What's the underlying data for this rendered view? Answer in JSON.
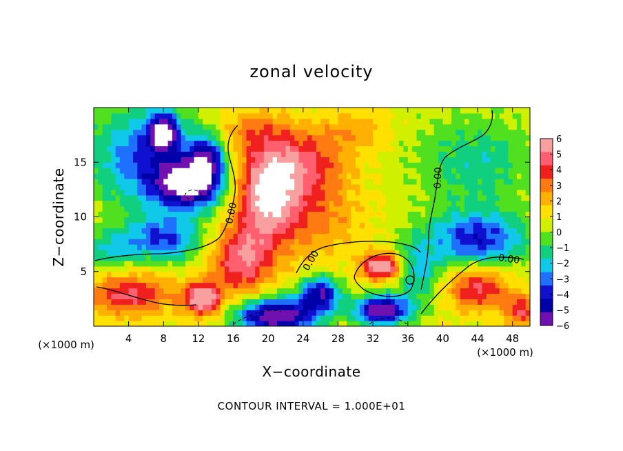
{
  "chart_data": {
    "type": "heatmap",
    "title": "zonal velocity",
    "xlabel": "X−coordinate",
    "ylabel": "Z−coordinate",
    "x_unit": "(×1000 m)",
    "z_unit": "(×1000 m)",
    "xlim": [
      0,
      50
    ],
    "ylim": [
      0,
      20
    ],
    "x_ticks": [
      "4",
      "8",
      "12",
      "16",
      "20",
      "24",
      "28",
      "32",
      "36",
      "40",
      "44",
      "48"
    ],
    "y_ticks": [
      "5",
      "10",
      "15"
    ],
    "colorbar": {
      "range": [
        -6,
        6
      ],
      "labels": [
        "6",
        "5",
        "4",
        "3",
        "2",
        "1",
        "0",
        "−1",
        "−2",
        "−3",
        "−4",
        "−5",
        "−6"
      ],
      "colors": [
        "#f8a0a0",
        "#ff5f6f",
        "#f0201f",
        "#ff7a10",
        "#ffb000",
        "#ffe000",
        "#d0f000",
        "#50e020",
        "#10d080",
        "#10c8e8",
        "#2070ff",
        "#1010d0",
        "#0000a8",
        "#7010b0"
      ]
    },
    "contour_labels": [
      "0.00",
      "0.00",
      "0.00",
      "0.00"
    ],
    "contour_interval_text": "CONTOUR INTERVAL = 1.000E+01",
    "blobs": [
      {
        "x": 8,
        "z": 17.8,
        "rx": 1.6,
        "rz": 1.6,
        "v": -5.5
      },
      {
        "x": 6,
        "z": 15.5,
        "rx": 6,
        "rz": 4.5,
        "v": -3.5
      },
      {
        "x": 11,
        "z": 13,
        "rx": 3.8,
        "rz": 2.2,
        "v": -6.5
      },
      {
        "x": 13,
        "z": 15.5,
        "rx": 2,
        "rz": 2,
        "v": -4
      },
      {
        "x": 20,
        "z": 12,
        "rx": 3.6,
        "rz": 4.2,
        "v": 6.5
      },
      {
        "x": 24,
        "z": 15,
        "rx": 5,
        "rz": 3,
        "v": 3.8
      },
      {
        "x": 26,
        "z": 10,
        "rx": 5,
        "rz": 4,
        "v": 2.6
      },
      {
        "x": 17,
        "z": 6,
        "rx": 3.5,
        "rz": 3,
        "v": 5
      },
      {
        "x": 18,
        "z": 18,
        "rx": 4,
        "rz": 2,
        "v": 2.5
      },
      {
        "x": 12.5,
        "z": 2.5,
        "rx": 2.2,
        "rz": 1.5,
        "v": 6.2
      },
      {
        "x": 4,
        "z": 3,
        "rx": 5,
        "rz": 2,
        "v": 4.5
      },
      {
        "x": 21,
        "z": 1,
        "rx": 4.5,
        "rz": 1.6,
        "v": -6.5
      },
      {
        "x": 26,
        "z": 3,
        "rx": 2.2,
        "rz": 1.6,
        "v": -5
      },
      {
        "x": 33,
        "z": 5.5,
        "rx": 2.2,
        "rz": 1.2,
        "v": 6.5
      },
      {
        "x": 33,
        "z": 1.5,
        "rx": 3,
        "rz": 1.3,
        "v": -6.5
      },
      {
        "x": 37,
        "z": 5,
        "rx": 2.5,
        "rz": 3,
        "v": -2
      },
      {
        "x": 44,
        "z": 3.5,
        "rx": 3.5,
        "rz": 2,
        "v": 4.5
      },
      {
        "x": 44,
        "z": 8,
        "rx": 5.5,
        "rz": 2.5,
        "v": -4
      },
      {
        "x": 49,
        "z": 1.5,
        "rx": 2,
        "rz": 1.5,
        "v": 4
      },
      {
        "x": 36,
        "z": 16,
        "rx": 6,
        "rz": 5,
        "v": 0.4
      },
      {
        "x": 44,
        "z": 15,
        "rx": 6,
        "rz": 4,
        "v": -1.5
      },
      {
        "x": 30,
        "z": 18,
        "rx": 4,
        "rz": 2,
        "v": 2.2
      },
      {
        "x": 2,
        "z": 7,
        "rx": 3,
        "rz": 2,
        "v": -1.8
      },
      {
        "x": 8,
        "z": 8,
        "rx": 4,
        "rz": 2,
        "v": -3.5
      }
    ]
  }
}
